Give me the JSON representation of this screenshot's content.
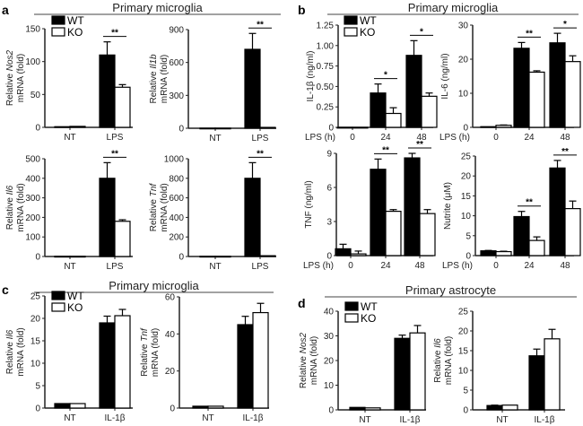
{
  "colors": {
    "WT": "#000000",
    "KO": "#ffffff",
    "axis": "#333333"
  },
  "panels": [
    {
      "letter": "a",
      "title": "Primary microglia"
    },
    {
      "letter": "b",
      "title": "Primary microglia"
    },
    {
      "letter": "c",
      "title": "Primary microglia"
    },
    {
      "letter": "d",
      "title": "Primary astrocyte"
    }
  ],
  "legend": [
    "WT",
    "KO"
  ],
  "chart_data": [
    {
      "type": "bar",
      "panel": "a",
      "ylabel": [
        "Relative ",
        "Nos2",
        " mRNA (fold)"
      ],
      "categories": [
        "NT",
        "LPS"
      ],
      "ylim": [
        0,
        150
      ],
      "yticks": [
        0,
        50,
        100,
        150
      ],
      "series": [
        {
          "name": "WT",
          "values": [
            1,
            110
          ],
          "errors": [
            0,
            20
          ]
        },
        {
          "name": "KO",
          "values": [
            1.5,
            61
          ],
          "errors": [
            0,
            4
          ]
        }
      ],
      "significance": [
        "",
        "**"
      ]
    },
    {
      "type": "bar",
      "panel": "a",
      "ylabel": [
        "Relative ",
        "Il1b",
        " mRNA (fold)"
      ],
      "categories": [
        "NT",
        "LPS"
      ],
      "ylim": [
        0,
        900
      ],
      "yticks": [
        0,
        300,
        600,
        900
      ],
      "series": [
        {
          "name": "WT",
          "values": [
            1,
            720
          ],
          "errors": [
            0,
            145
          ]
        },
        {
          "name": "KO",
          "values": [
            1,
            8
          ],
          "errors": [
            0,
            0
          ]
        }
      ],
      "significance": [
        "",
        "**"
      ]
    },
    {
      "type": "bar",
      "panel": "a",
      "ylabel": [
        "Relative ",
        "Il6",
        " mRNA (fold)"
      ],
      "categories": [
        "NT",
        "LPS"
      ],
      "ylim": [
        0,
        500
      ],
      "yticks": [
        0,
        100,
        200,
        300,
        400,
        500
      ],
      "series": [
        {
          "name": "WT",
          "values": [
            1,
            400
          ],
          "errors": [
            0,
            80
          ]
        },
        {
          "name": "KO",
          "values": [
            1,
            180
          ],
          "errors": [
            0,
            8
          ]
        }
      ],
      "significance": [
        "",
        "**"
      ]
    },
    {
      "type": "bar",
      "panel": "a",
      "ylabel": [
        "Relative ",
        "Tnf",
        " mRNA (fold)"
      ],
      "categories": [
        "NT",
        "LPS"
      ],
      "ylim": [
        0,
        1000
      ],
      "yticks": [
        0,
        200,
        400,
        600,
        800,
        1000
      ],
      "series": [
        {
          "name": "WT",
          "values": [
            2,
            800
          ],
          "errors": [
            0,
            160
          ]
        },
        {
          "name": "KO",
          "values": [
            2,
            8
          ],
          "errors": [
            0,
            0
          ]
        }
      ],
      "significance": [
        "",
        "**"
      ]
    },
    {
      "type": "bar",
      "panel": "b",
      "ylabel": [
        "IL-1β (ng/ml)"
      ],
      "xlabel": "LPS (h)",
      "categories": [
        "0",
        "24",
        "48"
      ],
      "ylim": [
        0,
        1.25
      ],
      "yticks": [
        "0",
        "0.25",
        "0.50",
        "0.75",
        "1.00",
        "1.25"
      ],
      "series": [
        {
          "name": "WT",
          "values": [
            0,
            0.42,
            0.88
          ],
          "errors": [
            0,
            0.11,
            0.18
          ]
        },
        {
          "name": "KO",
          "values": [
            0,
            0.17,
            0.38
          ],
          "errors": [
            0,
            0.07,
            0.04
          ]
        }
      ],
      "significance": [
        "",
        "*",
        "*"
      ]
    },
    {
      "type": "bar",
      "panel": "b",
      "ylabel": [
        "IL-6 (ng/ml)"
      ],
      "xlabel": "LPS (h)",
      "categories": [
        "0",
        "24",
        "48"
      ],
      "ylim": [
        0,
        30
      ],
      "yticks": [
        0,
        10,
        20,
        30
      ],
      "series": [
        {
          "name": "WT",
          "values": [
            0.2,
            23.2,
            24.8
          ],
          "errors": [
            0,
            1.7,
            2.8
          ]
        },
        {
          "name": "KO",
          "values": [
            0.6,
            16.2,
            19.3
          ],
          "errors": [
            0.1,
            0.4,
            1.7
          ]
        }
      ],
      "significance": [
        "",
        "**",
        "*"
      ]
    },
    {
      "type": "bar",
      "panel": "b",
      "ylabel": [
        "TNF (ng/ml)"
      ],
      "xlabel": "LPS (h)",
      "categories": [
        "0",
        "24",
        "48"
      ],
      "ylim": [
        0,
        9
      ],
      "yticks": [
        0,
        3,
        6,
        9
      ],
      "series": [
        {
          "name": "WT",
          "values": [
            0.6,
            7.6,
            8.6
          ],
          "errors": [
            0.4,
            0.9,
            0.4
          ]
        },
        {
          "name": "KO",
          "values": [
            0.15,
            3.9,
            3.7
          ],
          "errors": [
            0.25,
            0.15,
            0.35
          ]
        }
      ],
      "significance": [
        "",
        "**",
        "**"
      ]
    },
    {
      "type": "bar",
      "panel": "b",
      "ylabel": [
        "Nutrite (μM)"
      ],
      "xlabel": "LPS (h)",
      "categories": [
        "0",
        "24",
        "48"
      ],
      "ylim": [
        0,
        25
      ],
      "yticks": [
        0,
        5,
        10,
        15,
        20,
        25
      ],
      "series": [
        {
          "name": "WT",
          "values": [
            1.2,
            9.8,
            22
          ],
          "errors": [
            0.1,
            1.3,
            1.9
          ]
        },
        {
          "name": "KO",
          "values": [
            1.0,
            3.8,
            11.8
          ],
          "errors": [
            0.1,
            0.9,
            1.9
          ]
        }
      ],
      "significance": [
        "",
        "**",
        "**"
      ]
    },
    {
      "type": "bar",
      "panel": "c",
      "ylabel": [
        "Relative ",
        "Il6",
        " mRNA (fold)"
      ],
      "categories": [
        "NT",
        "IL-1β"
      ],
      "ylim": [
        0,
        25
      ],
      "yticks": [
        0,
        5,
        10,
        15,
        20,
        25
      ],
      "series": [
        {
          "name": "WT",
          "values": [
            1,
            19
          ],
          "errors": [
            0,
            1.5
          ]
        },
        {
          "name": "KO",
          "values": [
            1,
            20.6
          ],
          "errors": [
            0,
            1.4
          ]
        }
      ],
      "significance": [
        "",
        ""
      ]
    },
    {
      "type": "bar",
      "panel": "c",
      "ylabel": [
        "Relative ",
        "Tnf",
        " mRNA (fold)"
      ],
      "categories": [
        "NT",
        "IL-1β"
      ],
      "ylim": [
        0,
        60
      ],
      "yticks": [
        0,
        20,
        40,
        60
      ],
      "series": [
        {
          "name": "WT",
          "values": [
            1,
            45
          ],
          "errors": [
            0,
            4.5
          ]
        },
        {
          "name": "KO",
          "values": [
            1,
            51.5
          ],
          "errors": [
            0,
            5
          ]
        }
      ],
      "significance": [
        "",
        ""
      ]
    },
    {
      "type": "bar",
      "panel": "d",
      "ylabel": [
        "Relative ",
        "Nos2",
        " mRNA (fold)"
      ],
      "categories": [
        "NT",
        "IL-1β"
      ],
      "ylim": [
        0,
        40
      ],
      "yticks": [
        0,
        10,
        20,
        30,
        40
      ],
      "series": [
        {
          "name": "WT",
          "values": [
            1,
            29
          ],
          "errors": [
            0,
            1.3
          ]
        },
        {
          "name": "KO",
          "values": [
            0.8,
            31.2
          ],
          "errors": [
            0,
            3
          ]
        }
      ],
      "significance": [
        "",
        ""
      ]
    },
    {
      "type": "bar",
      "panel": "d",
      "ylabel": [
        "Relative ",
        "Il6",
        " mRNA (fold)"
      ],
      "categories": [
        "NT",
        "IL-1β"
      ],
      "ylim": [
        0,
        25
      ],
      "yticks": [
        0,
        5,
        10,
        15,
        20,
        25
      ],
      "series": [
        {
          "name": "WT",
          "values": [
            1.1,
            13.7
          ],
          "errors": [
            0.1,
            1.7
          ]
        },
        {
          "name": "KO",
          "values": [
            1.2,
            18
          ],
          "errors": [
            0,
            2.4
          ]
        }
      ],
      "significance": [
        "",
        ""
      ]
    }
  ]
}
